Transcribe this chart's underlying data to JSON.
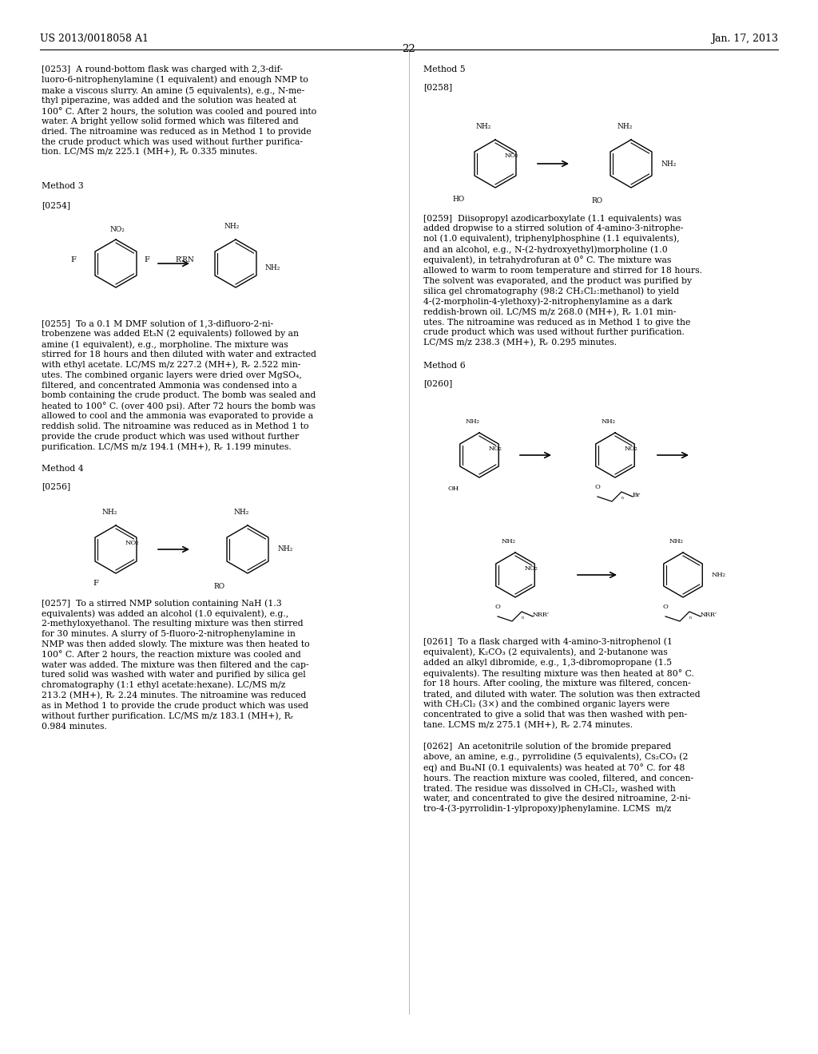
{
  "page_number": "22",
  "patent_number": "US 2013/0018058 A1",
  "patent_date": "Jan. 17, 2013",
  "bg": "#ffffff",
  "fg": "#000000",
  "fs_body": 7.8,
  "fs_bold": 8.0,
  "lh": 1.32
}
